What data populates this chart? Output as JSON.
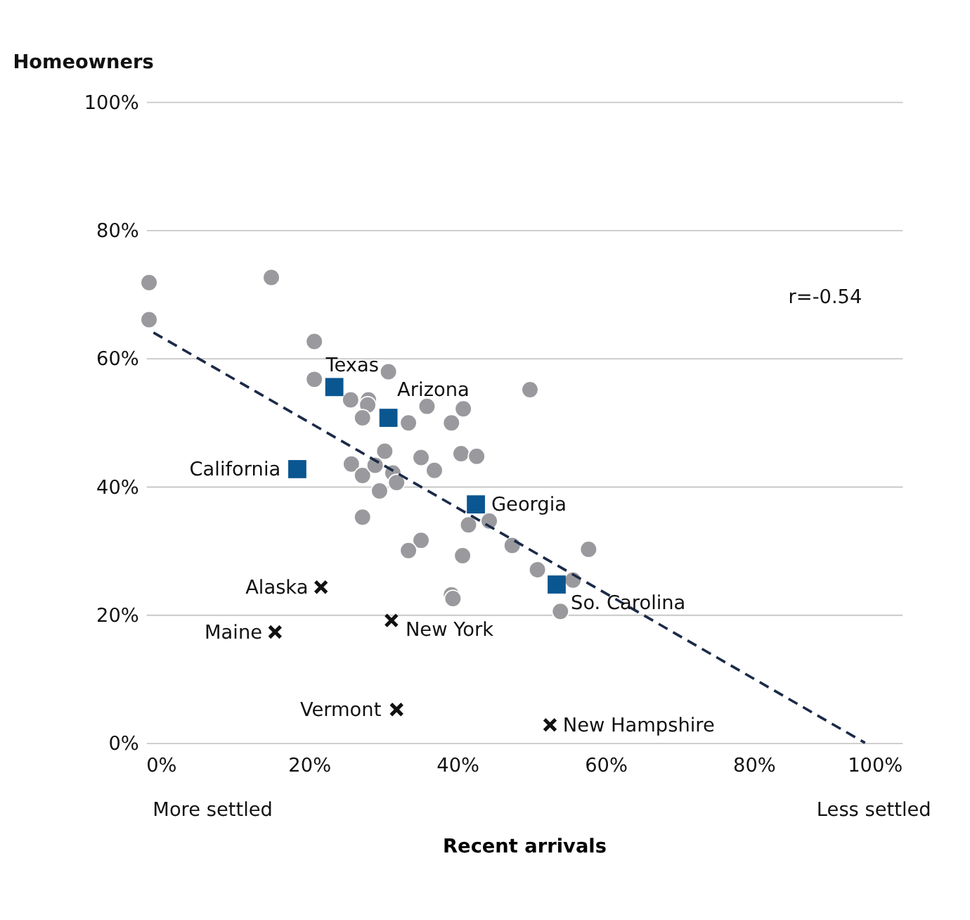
{
  "chart_data": {
    "type": "scatter",
    "title": "Homeowners",
    "xlabel": "Recent arrivals",
    "xlim": [
      -2,
      100
    ],
    "ylim": [
      0,
      100
    ],
    "xticks": [
      {
        "value": 0,
        "label": "0%"
      },
      {
        "value": 20,
        "label": "20%"
      },
      {
        "value": 40,
        "label": "40%"
      },
      {
        "value": 60,
        "label": "60%"
      },
      {
        "value": 80,
        "label": "80%"
      },
      {
        "value": 100,
        "label": "100%"
      }
    ],
    "yticks": [
      {
        "value": 0,
        "label": "0%"
      },
      {
        "value": 20,
        "label": "20%"
      },
      {
        "value": 40,
        "label": "40%"
      },
      {
        "value": 60,
        "label": "60%"
      },
      {
        "value": 80,
        "label": "80%"
      },
      {
        "value": 100,
        "label": "100%"
      }
    ],
    "grid": "y",
    "series": [
      {
        "marker": "circle",
        "color": "#9a9a9e",
        "x": [
          -1.6,
          -1.6,
          14.9,
          20.7,
          20.7,
          25.6,
          28,
          27.9,
          27.2,
          30.7,
          33.4,
          35.9,
          39.2,
          40.8,
          30.2,
          35.1,
          36.9,
          40.5,
          42.6,
          25.7,
          27.2,
          28.9,
          31.3,
          31.8,
          29.5,
          27.2,
          41.5,
          44.3,
          49.8,
          35.1,
          33.4,
          40.7,
          47.4,
          50.8,
          55.6,
          57.7,
          53.9,
          39.2,
          39.4
        ],
        "values": [
          71.8,
          66,
          72.6,
          62.6,
          56.7,
          53.5,
          53.5,
          52.7,
          50.7,
          57.9,
          49.9,
          52.5,
          49.9,
          52.1,
          45.5,
          44.5,
          42.5,
          45.1,
          44.7,
          43.5,
          41.7,
          43.3,
          42.1,
          40.6,
          39.3,
          35.2,
          34,
          34.6,
          55.1,
          31.6,
          30,
          29.2,
          30.8,
          27,
          25.4,
          30.2,
          20.5,
          23.1,
          22.5
        ]
      },
      {
        "marker": "square",
        "color": "#0a5690",
        "x": [
          23.4,
          30.7,
          18.4,
          42.5,
          53.4
        ],
        "values": [
          55.5,
          50.7,
          42.7,
          37.2,
          24.7
        ]
      },
      {
        "marker": "cross",
        "color": "#111111",
        "x": [
          21.6,
          15.4,
          31.1,
          31.8,
          52.5
        ],
        "values": [
          24.3,
          17.3,
          19.1,
          5.2,
          2.8
        ]
      },
      {
        "type": "line",
        "line_style": "dashed",
        "color": "#1b2a48",
        "x": [
          -1,
          95
        ],
        "values": [
          64,
          0
        ]
      }
    ],
    "annotations": [
      {
        "text": "Texas",
        "x": 23.4,
        "y": 55.5
      },
      {
        "text": "Arizona",
        "x": 30.7,
        "y": 50.7
      },
      {
        "text": "California",
        "x": 18.4,
        "y": 42.7
      },
      {
        "text": "Georgia",
        "x": 42.5,
        "y": 37.2
      },
      {
        "text": "So. Carolina",
        "x": 53.4,
        "y": 24.7
      },
      {
        "text": "Alaska",
        "x": 21.6,
        "y": 24.3
      },
      {
        "text": "Maine",
        "x": 15.4,
        "y": 17.3
      },
      {
        "text": "New York",
        "x": 31.1,
        "y": 19.1
      },
      {
        "text": "Vermont",
        "x": 31.8,
        "y": 5.2
      },
      {
        "text": "New Hampshire",
        "x": 52.5,
        "y": 2.8
      },
      "r=-0.54",
      "More settled",
      "Less settled"
    ]
  }
}
